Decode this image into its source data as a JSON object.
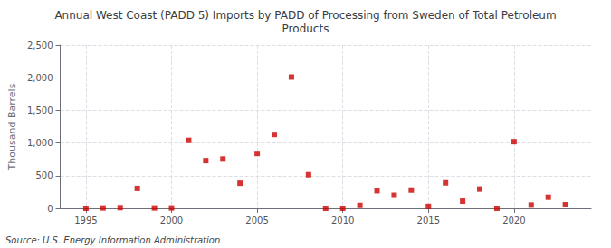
{
  "chart_data": {
    "type": "scatter",
    "title": "Annual West Coast (PADD 5) Imports by PADD of Processing from Sweden of Total Petroleum\nProducts",
    "ylabel": "Thousand Barrels",
    "annotations": [
      "Source: U.S. Energy Information Administration"
    ],
    "x": [
      1995,
      1996,
      1997,
      1998,
      1999,
      2000,
      2001,
      2002,
      2003,
      2004,
      2005,
      2006,
      2007,
      2008,
      2009,
      2010,
      2011,
      2012,
      2013,
      2014,
      2015,
      2016,
      2017,
      2018,
      2019,
      2020,
      2021,
      2022,
      2023
    ],
    "values": [
      0,
      5,
      10,
      305,
      5,
      5,
      1040,
      730,
      755,
      385,
      840,
      1130,
      2010,
      515,
      0,
      0,
      45,
      270,
      200,
      280,
      30,
      390,
      110,
      295,
      0,
      1020,
      50,
      170,
      55
    ],
    "color": "#cc0000",
    "marker": "square",
    "xlim": [
      1993.5,
      2024.5
    ],
    "xticks": [
      1995,
      2000,
      2005,
      2010,
      2015,
      2020
    ],
    "ylim": [
      0,
      2500
    ],
    "yticks": [
      0,
      500,
      {
        "value": 1000,
        "label": "1,000"
      },
      {
        "value": 1500,
        "label": "1,500"
      },
      {
        "value": 2000,
        "label": "2,000"
      },
      {
        "value": 2500,
        "label": "2,500"
      }
    ],
    "grid": true
  }
}
